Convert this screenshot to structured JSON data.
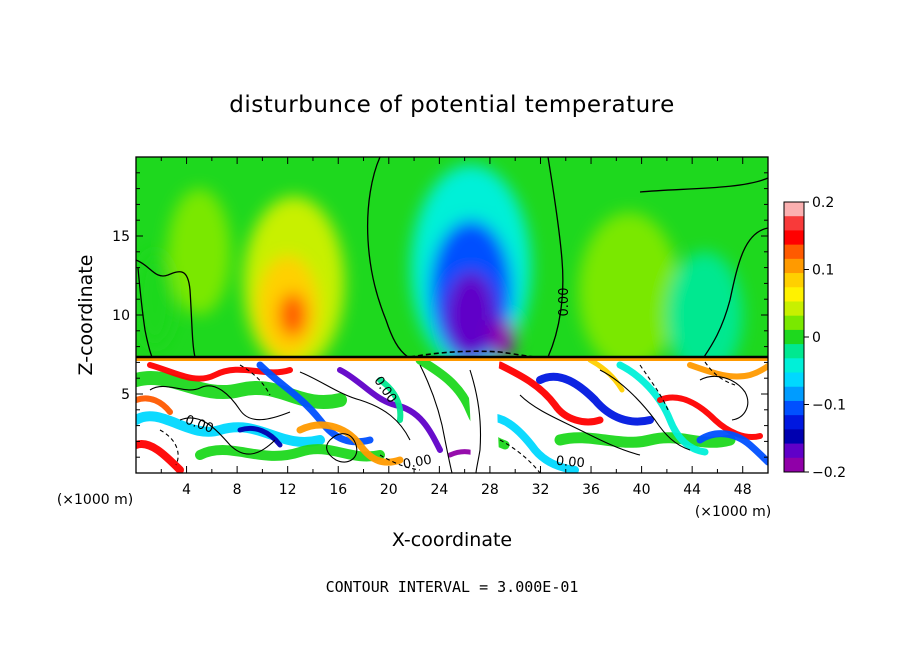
{
  "chart_data": {
    "type": "heatmap",
    "title": "disturbunce of potential temperature",
    "xlabel": "X-coordinate",
    "ylabel": "Z-coordinate",
    "x_unit": "(×1000 m)",
    "xlim": [
      0,
      50
    ],
    "ylim": [
      0,
      20
    ],
    "x_ticks": [
      4,
      8,
      12,
      16,
      20,
      24,
      28,
      32,
      36,
      40,
      44,
      48
    ],
    "y_ticks": [
      5,
      10,
      15
    ],
    "colorbar": {
      "range": [
        -0.2,
        0.2
      ],
      "ticks": [
        "0.2",
        "0.1",
        "0",
        "−0.1",
        "−0.2"
      ],
      "colors": [
        "#fbb0b0",
        "#f83a3a",
        "#ff0000",
        "#ff5a00",
        "#ff9a00",
        "#ffd000",
        "#fff200",
        "#c8f000",
        "#7ae800",
        "#1ed81e",
        "#00e890",
        "#00f0d8",
        "#00d8ff",
        "#009cff",
        "#0050ff",
        "#0018e0",
        "#0000b0",
        "#6000c8",
        "#9000a8"
      ]
    },
    "contour_interval": "CONTOUR INTERVAL = 3.000E-01",
    "contour_labels": [
      "0.00",
      "0.00",
      "0.00",
      "0.00",
      "0.00"
    ],
    "blobs_upper": [
      {
        "x": 12.5,
        "z": 12,
        "w": 8,
        "h": 11,
        "v": 0.04
      },
      {
        "x": 12,
        "z": 10.5,
        "w": 4.8,
        "h": 6.5,
        "v": 0.085
      },
      {
        "x": 12.4,
        "z": 10,
        "w": 2.2,
        "h": 2.8,
        "v": 0.13
      },
      {
        "x": 26.5,
        "z": 13,
        "w": 9.5,
        "h": 13,
        "v": -0.05
      },
      {
        "x": 26.5,
        "z": 11.5,
        "w": 6.5,
        "h": 9,
        "v": -0.11
      },
      {
        "x": 26.5,
        "z": 10,
        "w": 4,
        "h": 5.5,
        "v": -0.16
      },
      {
        "x": 29,
        "z": 8.5,
        "w": 2,
        "h": 2.5,
        "v": -0.22
      },
      {
        "x": 39,
        "z": 11.5,
        "w": 8,
        "h": 10,
        "v": 0.02
      },
      {
        "x": 5,
        "z": 14,
        "w": 5,
        "h": 8,
        "v": 0.015
      },
      {
        "x": 45,
        "z": 10,
        "w": 6,
        "h": 8,
        "v": -0.015
      },
      {
        "x": 1.5,
        "z": 11,
        "w": 3,
        "h": 6,
        "v": -0.01
      }
    ]
  }
}
